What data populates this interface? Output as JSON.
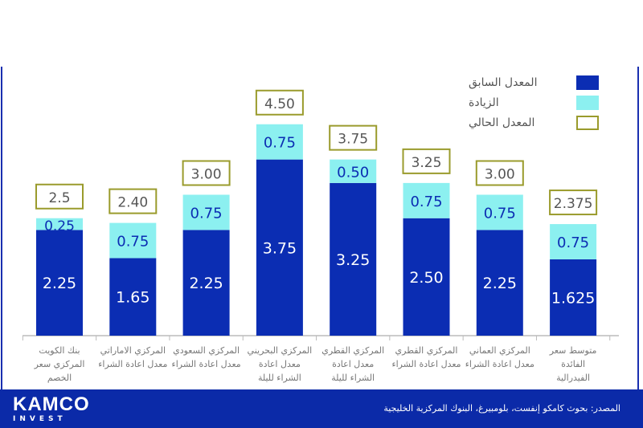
{
  "chart_data": {
    "type": "bar",
    "stacked": true,
    "categories": [
      [
        "بنك الكويت",
        "المركزي سعر",
        "الخصم"
      ],
      [
        "المركزي الاماراتي",
        "معدل اعادة الشراء"
      ],
      [
        "المركزي السعودي",
        "معدل اعادة الشراء"
      ],
      [
        "المركزي البحريني",
        "معدل اعادة",
        "الشراء لليلة"
      ],
      [
        "المركزي القطري",
        "معدل اعادة",
        "الشراء لليلة"
      ],
      [
        "المركزي القطري",
        "معدل اعادة الشراء"
      ],
      [
        "المركزي العماني",
        "معدل اعادة الشراء"
      ],
      [
        "متوسط سعر",
        "الفائدة",
        "الفيدرالية"
      ]
    ],
    "series": [
      {
        "name": "المعدل السابق",
        "color": "#0b2db3",
        "values": [
          2.25,
          1.65,
          2.25,
          3.75,
          3.25,
          2.5,
          2.25,
          1.625
        ],
        "labels": [
          "2.25",
          "1.65",
          "2.25",
          "3.75",
          "3.25",
          "2.50",
          "2.25",
          "1.625"
        ]
      },
      {
        "name": "الزيادة",
        "color": "#8cf0f0",
        "values": [
          0.25,
          0.75,
          0.75,
          0.75,
          0.5,
          0.75,
          0.75,
          0.75
        ],
        "labels": [
          "0.25",
          "0.75",
          "0.75",
          "0.75",
          "0.50",
          "0.75",
          "0.75",
          "0.75"
        ]
      },
      {
        "name": "المعدل الحالي",
        "color": "#9a9b2c",
        "values": [
          2.5,
          2.4,
          3.0,
          4.5,
          3.75,
          3.25,
          3.0,
          2.375
        ],
        "labels": [
          "2.5",
          "2.40",
          "3.00",
          "4.50",
          "3.75",
          "3.25",
          "3.00",
          "2.375"
        ]
      }
    ],
    "legend_position": "top-right",
    "grid": false
  },
  "footer": {
    "logo_main": "KAMCO",
    "logo_sub": "INVEST",
    "source": "المصدر: بحوث كامكو إنفست، بلومبيرغ، البنوك المركزية الخليجية"
  }
}
